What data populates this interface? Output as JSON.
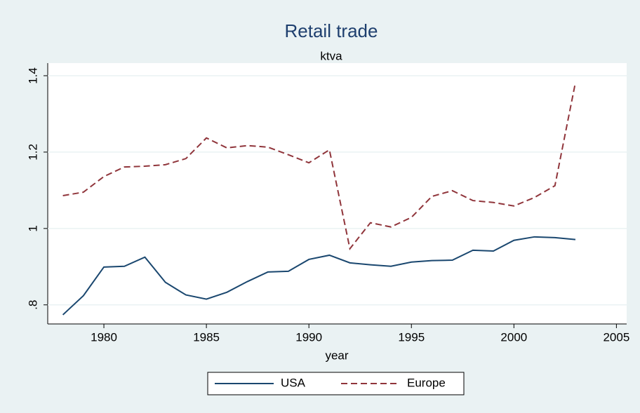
{
  "chart_data": {
    "type": "line",
    "title": "Retail trade",
    "subtitle": "ktva",
    "x_label": "year",
    "x": [
      1978,
      1979,
      1980,
      1981,
      1982,
      1983,
      1984,
      1985,
      1986,
      1987,
      1988,
      1989,
      1990,
      1991,
      1992,
      1993,
      1994,
      1995,
      1996,
      1997,
      1998,
      1999,
      2000,
      2001,
      2002,
      2003
    ],
    "series": [
      {
        "name": "USA",
        "color": "#1a476f",
        "dash": false,
        "values": [
          0.774,
          0.824,
          0.899,
          0.901,
          0.925,
          0.859,
          0.826,
          0.815,
          0.833,
          0.861,
          0.886,
          0.888,
          0.919,
          0.93,
          0.91,
          0.905,
          0.901,
          0.912,
          0.916,
          0.917,
          0.943,
          0.941,
          0.969,
          0.978,
          0.976,
          0.971
        ]
      },
      {
        "name": "Europe",
        "color": "#90353b",
        "dash": true,
        "values": [
          1.086,
          1.095,
          1.136,
          1.161,
          1.163,
          1.167,
          1.183,
          1.237,
          1.211,
          1.217,
          1.213,
          1.193,
          1.172,
          1.206,
          0.947,
          1.015,
          1.004,
          1.029,
          1.084,
          1.099,
          1.073,
          1.068,
          1.059,
          1.081,
          1.112,
          1.382
        ]
      }
    ],
    "xlim": [
      1977.26,
      2005.5
    ],
    "xticks": [
      1980,
      1985,
      1990,
      1995,
      2000,
      2005
    ],
    "ylim": [
      0.75,
      1.433
    ],
    "yticks": [
      {
        "value": 0.8,
        "label": ".8"
      },
      1,
      1.2,
      1.4
    ],
    "grid": true,
    "legend": "bottom"
  }
}
